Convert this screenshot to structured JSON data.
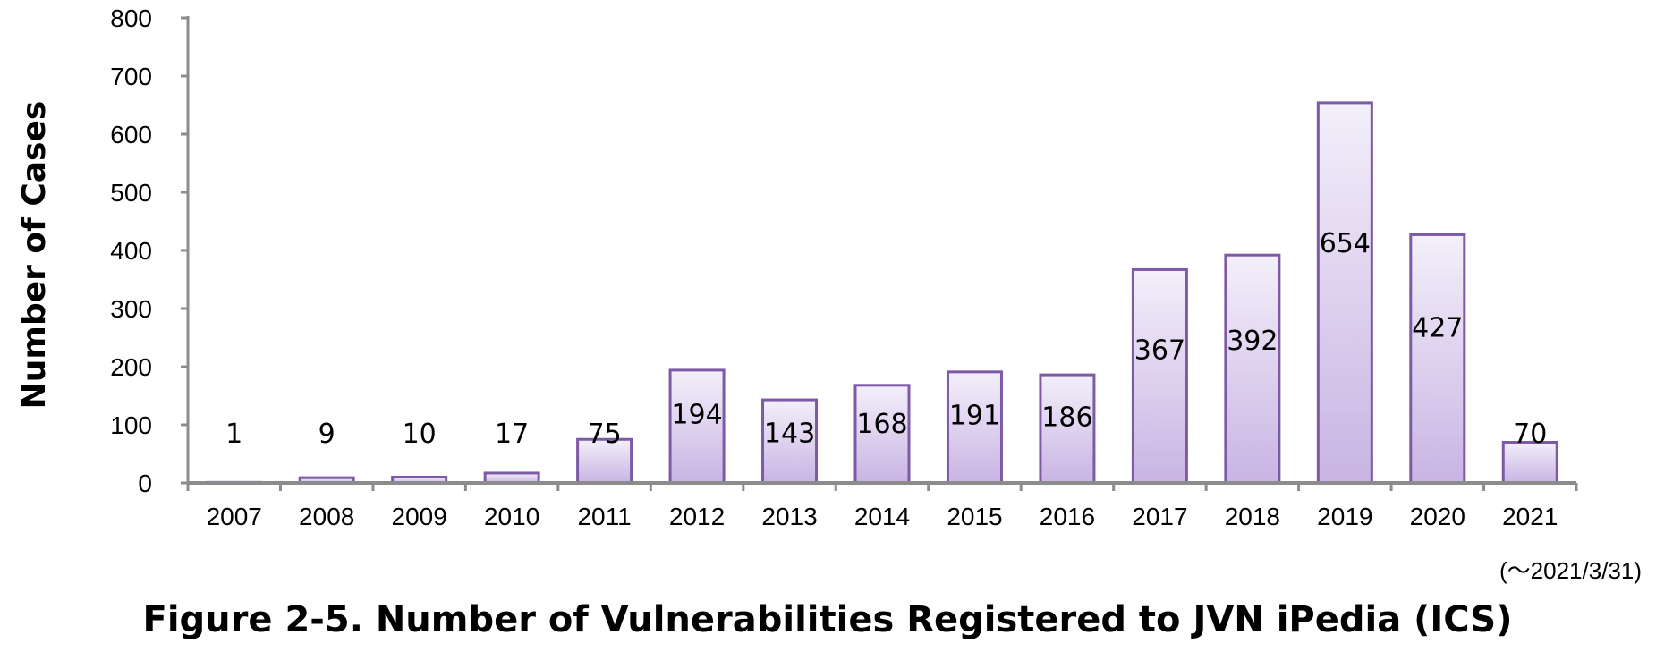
{
  "chart_data": {
    "type": "bar",
    "categories": [
      "2007",
      "2008",
      "2009",
      "2010",
      "2011",
      "2012",
      "2013",
      "2014",
      "2015",
      "2016",
      "2017",
      "2018",
      "2019",
      "2020",
      "2021"
    ],
    "values": [
      1,
      9,
      10,
      17,
      75,
      194,
      143,
      168,
      191,
      186,
      367,
      392,
      654,
      427,
      70
    ],
    "ylabel": "Number of Cases",
    "xlabel": "",
    "ylim": [
      0,
      800
    ],
    "yticks": [
      0,
      100,
      200,
      300,
      400,
      500,
      600,
      700,
      800
    ],
    "note": "(～2021/3/31)",
    "caption": "Figure 2-5. Number of Vulnerabilities Registered to JVN iPedia (ICS)",
    "colors": {
      "bar_top": "#f3effa",
      "bar_bottom": "#c9b4e3",
      "bar_border": "#7d5aa6",
      "axis": "#8c8c8c"
    }
  }
}
